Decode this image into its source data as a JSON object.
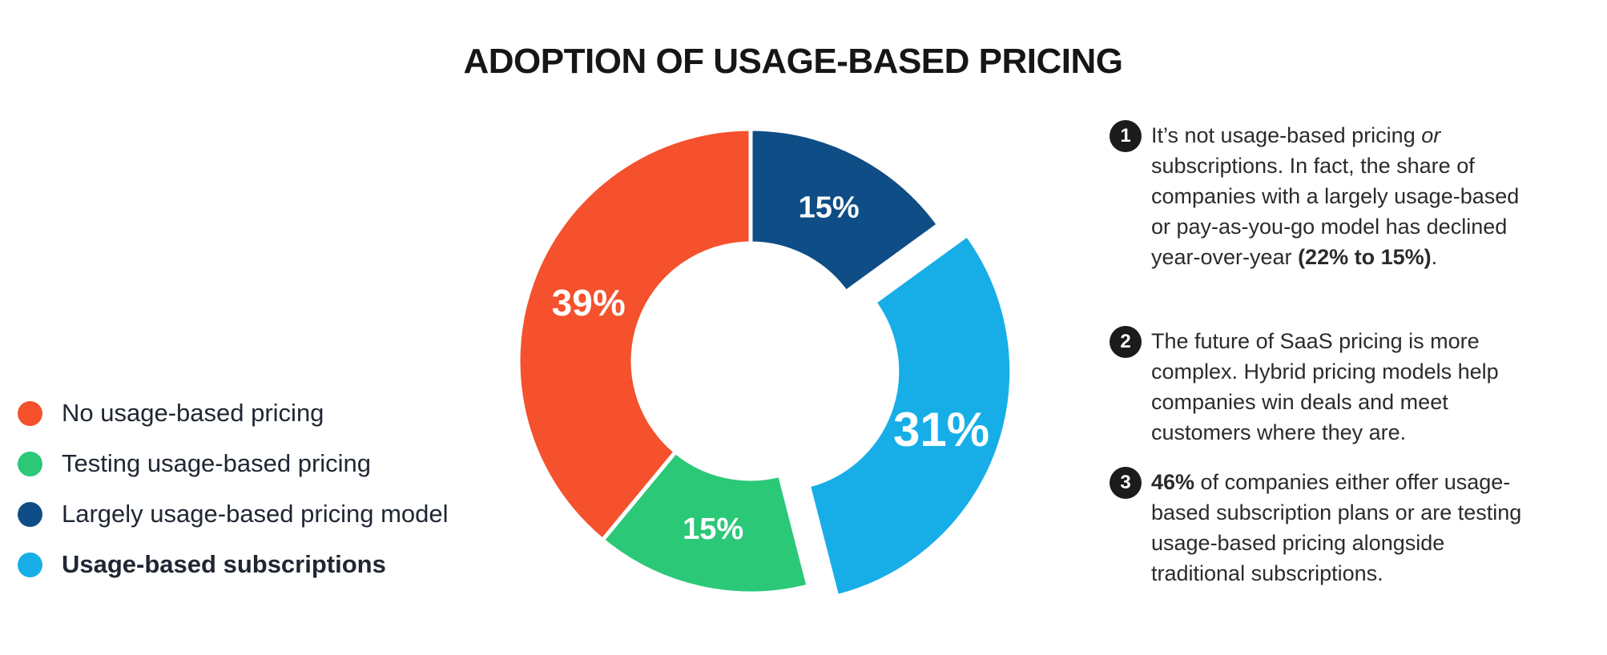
{
  "title": "ADOPTION OF USAGE-BASED PRICING",
  "colors": {
    "orange": "#F4512C",
    "green": "#2BC878",
    "dark_blue": "#0E4D85",
    "light_blue": "#17AEE8",
    "text": "#2b2b2b",
    "badge": "#1b1b1b"
  },
  "legend": {
    "items": [
      {
        "label": "No usage-based pricing",
        "color": "#F4512C",
        "bold": false
      },
      {
        "label": "Testing usage-based pricing",
        "color": "#2BC878",
        "bold": false
      },
      {
        "label": "Largely usage-based pricing model",
        "color": "#0E4D85",
        "bold": false
      },
      {
        "label": "Usage-based subscriptions",
        "color": "#17AEE8",
        "bold": true
      }
    ]
  },
  "chart_data": {
    "type": "pie",
    "subtype": "donut",
    "title": "ADOPTION OF USAGE-BASED PRICING",
    "unit": "%",
    "categories": [
      "No usage-based pricing",
      "Testing usage-based pricing",
      "Largely usage-based pricing model",
      "Usage-based subscriptions"
    ],
    "values": [
      39,
      15,
      15,
      31
    ],
    "direction": "clockwise",
    "start_angle_deg": 0,
    "legend_position": "left",
    "slices": [
      {
        "label": "Largely usage-based pricing model",
        "value": 15,
        "label_text": "15%",
        "color": "#0E4D85",
        "exploded": false,
        "label_size": 38
      },
      {
        "label": "Usage-based subscriptions",
        "value": 31,
        "label_text": "31%",
        "color": "#17AEE8",
        "exploded": true,
        "label_size": 60
      },
      {
        "label": "Testing usage-based pricing",
        "value": 15,
        "label_text": "15%",
        "color": "#2BC878",
        "exploded": false,
        "label_size": 38
      },
      {
        "label": "No usage-based pricing",
        "value": 39,
        "label_text": "39%",
        "color": "#F4512C",
        "exploded": false,
        "label_size": 46
      }
    ]
  },
  "annotations": [
    {
      "number": "1",
      "parts": [
        {
          "t": "It’s not usage-based pricing "
        },
        {
          "t": "or",
          "style": "italic"
        },
        {
          "t": " subscriptions. In fact, the share of companies with a largely usage-based or pay-as-you-go model has declined year-over-year "
        },
        {
          "t": "(22% to 15%)",
          "style": "bold"
        },
        {
          "t": "."
        }
      ]
    },
    {
      "number": "2",
      "parts": [
        {
          "t": "The future of SaaS pricing is more complex. Hybrid pricing models help companies win deals and meet customers where they are."
        }
      ]
    },
    {
      "number": "3",
      "parts": [
        {
          "t": "46%",
          "style": "bold"
        },
        {
          "t": " of companies either offer usage-based subscription plans or are testing usage-based pricing alongside traditional subscriptions."
        }
      ]
    }
  ]
}
